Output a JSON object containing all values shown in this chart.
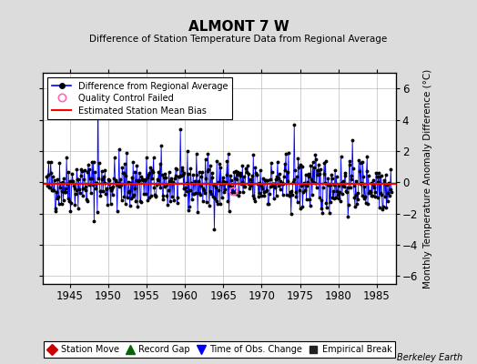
{
  "title": "ALMONT 7 W",
  "subtitle": "Difference of Station Temperature Data from Regional Average",
  "ylabel": "Monthly Temperature Anomaly Difference (°C)",
  "xlabel_ticks": [
    1945,
    1950,
    1955,
    1960,
    1965,
    1970,
    1975,
    1980,
    1985
  ],
  "ylim": [
    -6.5,
    7.0
  ],
  "yticks": [
    -6,
    -4,
    -2,
    0,
    2,
    4,
    6
  ],
  "xmin": 1941.5,
  "xmax": 1987.5,
  "mean_bias": -0.1,
  "line_color": "#0000FF",
  "dot_color": "#000000",
  "bias_color": "#FF0000",
  "bg_color": "#DCDCDC",
  "plot_bg": "#FFFFFF",
  "grid_color": "#BBBBBB",
  "qc_marker_color": "#FF69B4",
  "seed": 42,
  "start_year": 1942,
  "end_year": 1987,
  "watermark": "Berkeley Earth",
  "qc_year": 1966.3
}
